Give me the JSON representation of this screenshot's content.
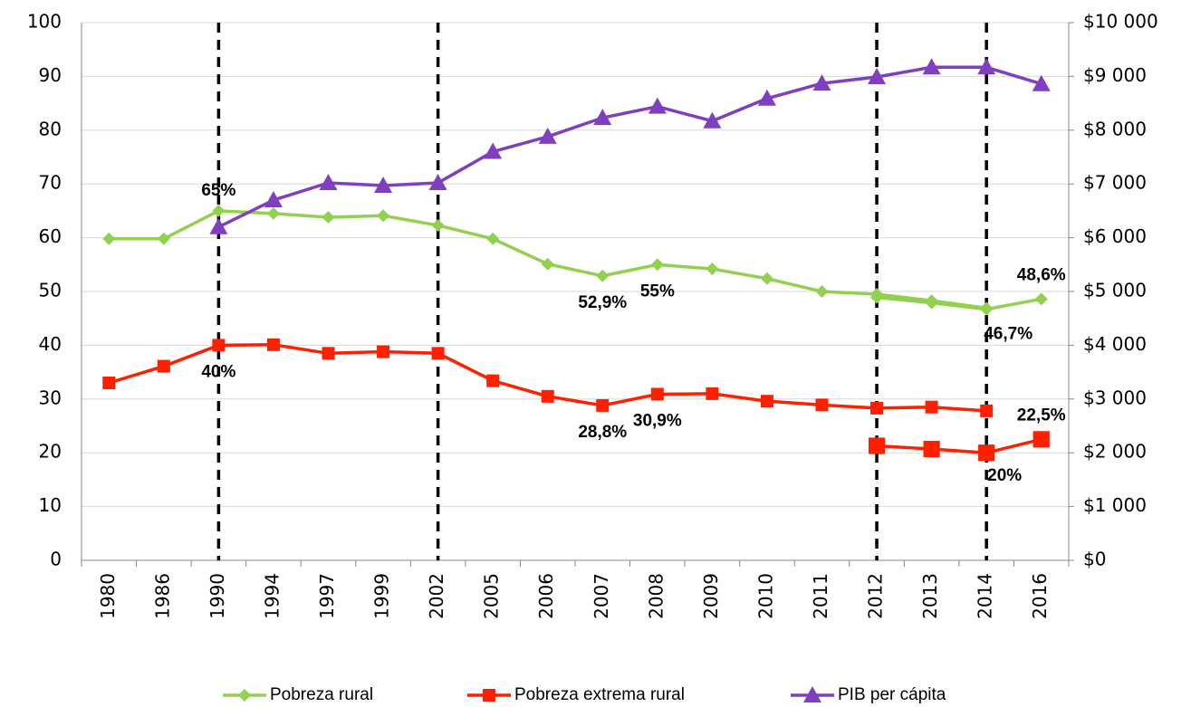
{
  "chart_data": {
    "type": "line",
    "categories": [
      "1980",
      "1986",
      "1990",
      "1994",
      "1997",
      "1999",
      "2002",
      "2005",
      "2006",
      "2007",
      "2008",
      "2009",
      "2010",
      "2011",
      "2012",
      "2013",
      "2014",
      "2016"
    ],
    "ylim": [
      0,
      100
    ],
    "yticks": [
      0,
      10,
      20,
      30,
      40,
      50,
      60,
      70,
      80,
      90,
      100
    ],
    "y2lim": [
      0,
      10000
    ],
    "y2ticks": [
      {
        "value": 0,
        "label": "$0"
      },
      {
        "value": 1000,
        "label": "$1 000"
      },
      {
        "value": 2000,
        "label": "$2 000"
      },
      {
        "value": 3000,
        "label": "$3 000"
      },
      {
        "value": 4000,
        "label": "$4 000"
      },
      {
        "value": 5000,
        "label": "$5 000"
      },
      {
        "value": 6000,
        "label": "$6 000"
      },
      {
        "value": 7000,
        "label": "$7 000"
      },
      {
        "value": 8000,
        "label": "$8 000"
      },
      {
        "value": 9000,
        "label": "$9 000"
      },
      {
        "value": 10000,
        "label": "$10 000"
      }
    ],
    "grid": true,
    "legend": "bottom",
    "vlines": [
      "1990",
      "2002",
      "2012",
      "2014"
    ],
    "series": [
      {
        "name": "Pobreza rural",
        "color": "#92d050",
        "marker": "diamond",
        "values": [
          59.8,
          59.8,
          65,
          64.5,
          63.8,
          64.1,
          62.3,
          59.8,
          55.1,
          52.9,
          55,
          54.2,
          52.4,
          50,
          49.5,
          48.3,
          46.9,
          null
        ],
        "value_labels": [
          null,
          null,
          "65%",
          null,
          null,
          null,
          null,
          null,
          null,
          "52,9%",
          "55%",
          null,
          null,
          null,
          null,
          null,
          null,
          null
        ]
      },
      {
        "color": "#92d050",
        "marker": "diamond",
        "values": [
          null,
          null,
          null,
          null,
          null,
          null,
          null,
          null,
          null,
          null,
          null,
          null,
          null,
          null,
          48.9,
          47.9,
          46.7,
          48.6
        ],
        "value_labels": [
          null,
          null,
          null,
          null,
          null,
          null,
          null,
          null,
          null,
          null,
          null,
          null,
          null,
          null,
          null,
          null,
          "46,7%",
          "48,6%"
        ]
      },
      {
        "name": "Pobreza extrema rural",
        "color": "#ff2000",
        "marker": "square",
        "values": [
          33,
          36.1,
          40,
          40.1,
          38.5,
          38.8,
          38.5,
          33.4,
          30.5,
          28.8,
          30.9,
          31,
          29.6,
          28.9,
          28.3,
          28.5,
          27.8,
          null
        ],
        "value_labels": [
          null,
          null,
          "40%",
          null,
          null,
          null,
          null,
          null,
          null,
          "28,8%",
          "30,9%",
          null,
          null,
          null,
          null,
          null,
          null,
          null
        ]
      },
      {
        "color": "#ff2000",
        "marker": "square",
        "values": [
          null,
          null,
          null,
          null,
          null,
          null,
          null,
          null,
          null,
          null,
          null,
          null,
          null,
          null,
          21.3,
          20.7,
          20,
          22.5
        ],
        "value_labels": [
          null,
          null,
          null,
          null,
          null,
          null,
          null,
          null,
          null,
          null,
          null,
          null,
          null,
          null,
          null,
          null,
          "20%",
          "22,5%"
        ]
      },
      {
        "name": "PIB per cápita",
        "color": "#7f3fbf",
        "marker": "triangle",
        "axis": "y2",
        "values": [
          null,
          null,
          6200,
          6700,
          7020,
          6970,
          7020,
          7600,
          7880,
          8230,
          8440,
          8170,
          8590,
          8870,
          8990,
          9170,
          9170,
          8860
        ]
      }
    ]
  }
}
